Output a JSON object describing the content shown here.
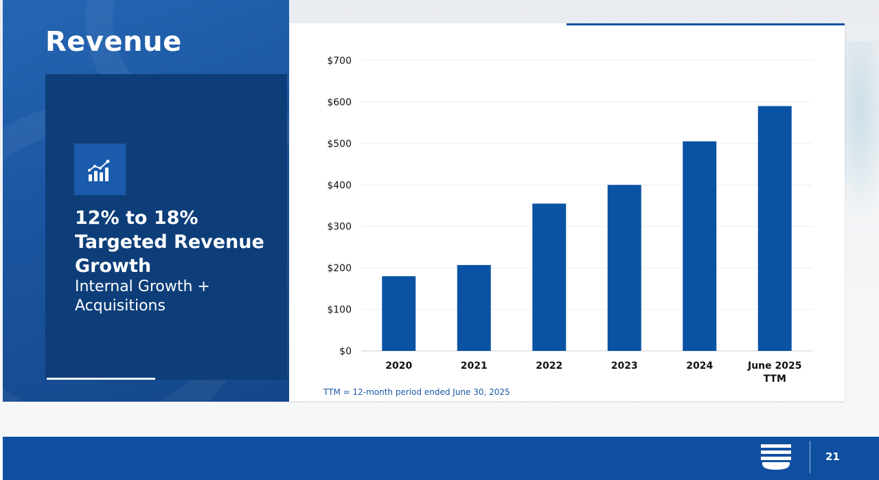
{
  "slide": {
    "title": "Revenue",
    "page_number": "21",
    "accent_color": "#0f4fa0"
  },
  "panel": {
    "icon": "growth-chart-icon",
    "headline": "12% to 18% Targeted Revenue Growth",
    "subline": "Internal Growth + Acquisitions"
  },
  "chart_data": {
    "type": "bar",
    "categories": [
      "2020",
      "2021",
      "2022",
      "2023",
      "2024",
      "June 2025 TTM"
    ],
    "values": [
      180,
      207,
      355,
      400,
      505,
      590
    ],
    "ylim": [
      0,
      700
    ],
    "yticks": [
      0,
      100,
      200,
      300,
      400,
      500,
      600,
      700
    ],
    "ytick_labels": [
      "$0",
      "$100",
      "$200",
      "$300",
      "$400",
      "$500",
      "$600",
      "$700"
    ],
    "bar_color": "#0a52a3",
    "grid": true,
    "footnote": "TTM = 12-month period ended June 30, 2025"
  },
  "footer": {
    "logo_icon": "company-logo-icon"
  }
}
